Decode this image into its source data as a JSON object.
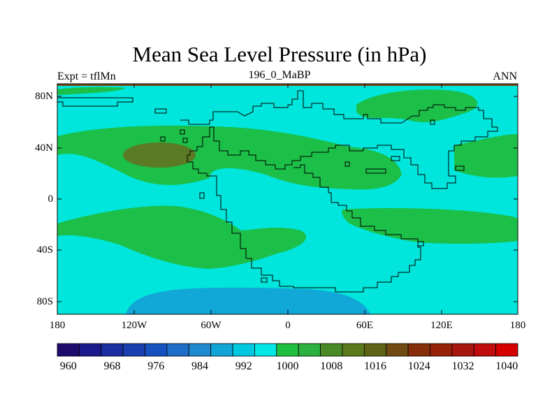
{
  "chart_data": {
    "type": "map",
    "title": "Mean Sea Level Pressure (in hPa)",
    "left_string": "Expt = tflMn",
    "center_string": "196_0_MaBP",
    "right_string": "ANN",
    "x_axis": {
      "range": [
        -180,
        180
      ],
      "tick_labels": [
        "180",
        "120W",
        "60W",
        "0",
        "60E",
        "120E",
        "180"
      ]
    },
    "y_axis": {
      "range": [
        -90,
        90
      ],
      "tick_labels": [
        "80N",
        "40N",
        "0",
        "40S",
        "80S"
      ]
    },
    "colorbar": {
      "levels": [
        960,
        964,
        968,
        972,
        976,
        980,
        984,
        988,
        992,
        996,
        1000,
        1004,
        1008,
        1012,
        1016,
        1020,
        1024,
        1028,
        1032,
        1036,
        1040
      ],
      "labels": [
        "960",
        "968",
        "976",
        "984",
        "992",
        "1000",
        "1008",
        "1016",
        "1024",
        "1032",
        "1040"
      ],
      "colors": [
        "#1e0b6e",
        "#1a1a8c",
        "#1a2ea0",
        "#1a3fb0",
        "#1552c0",
        "#1d6ec8",
        "#1f8ad0",
        "#12a6d8",
        "#00c8e0",
        "#00e6e6",
        "#1fc040",
        "#2cb040",
        "#4a8a26",
        "#5a7a1c",
        "#5e6414",
        "#704a12",
        "#862e0a",
        "#962008",
        "#a81610",
        "#c00c0c",
        "#d60000"
      ]
    },
    "fill_colors": {
      "background": "#00e6dc",
      "band_1008": "#1cbf48",
      "high_1016": "#5a7a24",
      "low_992": "#11a7d6",
      "border": "#7a4a18"
    }
  }
}
